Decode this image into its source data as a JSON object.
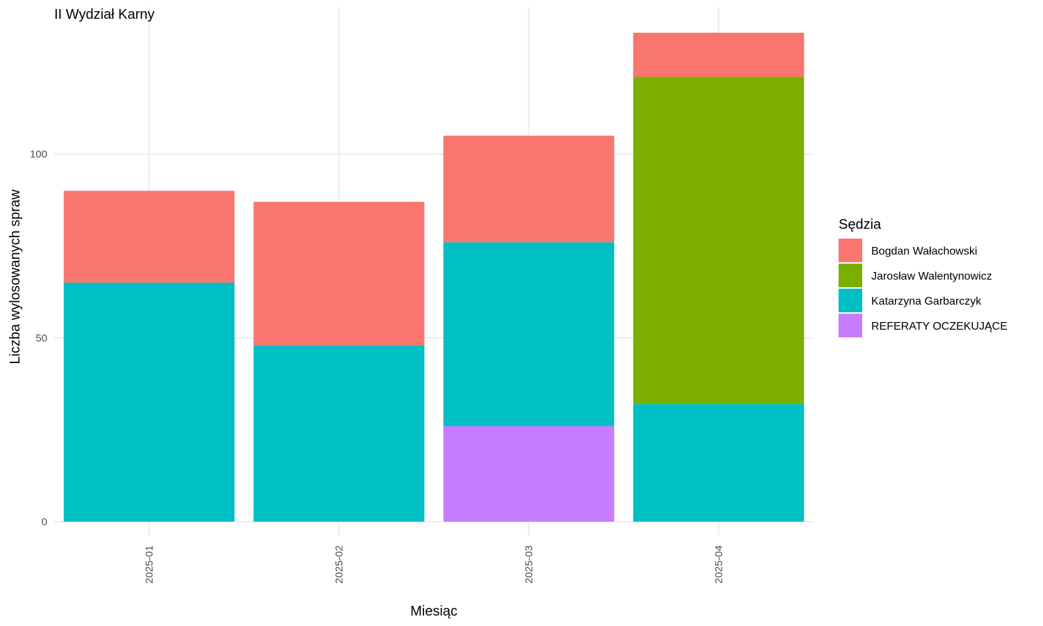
{
  "chart_data": {
    "type": "bar",
    "stacked": true,
    "title": "II Wydział Karny",
    "xlabel": "Miesiąc",
    "ylabel": "Liczba wylosowanych spraw",
    "categories": [
      "2025-01",
      "2025-02",
      "2025-03",
      "2025-04"
    ],
    "ylim": [
      0,
      140
    ],
    "yticks": [
      0,
      50,
      100
    ],
    "grid": true,
    "legend": {
      "title": "Sędzia",
      "position": "right"
    },
    "series": [
      {
        "name": "REFERATY OCZEKUJĄCE",
        "color": "#C77CFF",
        "values": [
          0,
          0,
          26,
          0
        ]
      },
      {
        "name": "Katarzyna Garbarczyk",
        "color": "#00BFC4",
        "values": [
          65,
          48,
          50,
          32
        ]
      },
      {
        "name": "Jarosław Walentynowicz",
        "color": "#7CAE00",
        "values": [
          0,
          0,
          0,
          89
        ]
      },
      {
        "name": "Bogdan Wałachowski",
        "color": "#F8766D",
        "values": [
          25,
          39,
          29,
          12
        ]
      }
    ],
    "legend_order": [
      "Bogdan Wałachowski",
      "Jarosław Walentynowicz",
      "Katarzyna Garbarczyk",
      "REFERATY OCZEKUJĄCE"
    ]
  }
}
